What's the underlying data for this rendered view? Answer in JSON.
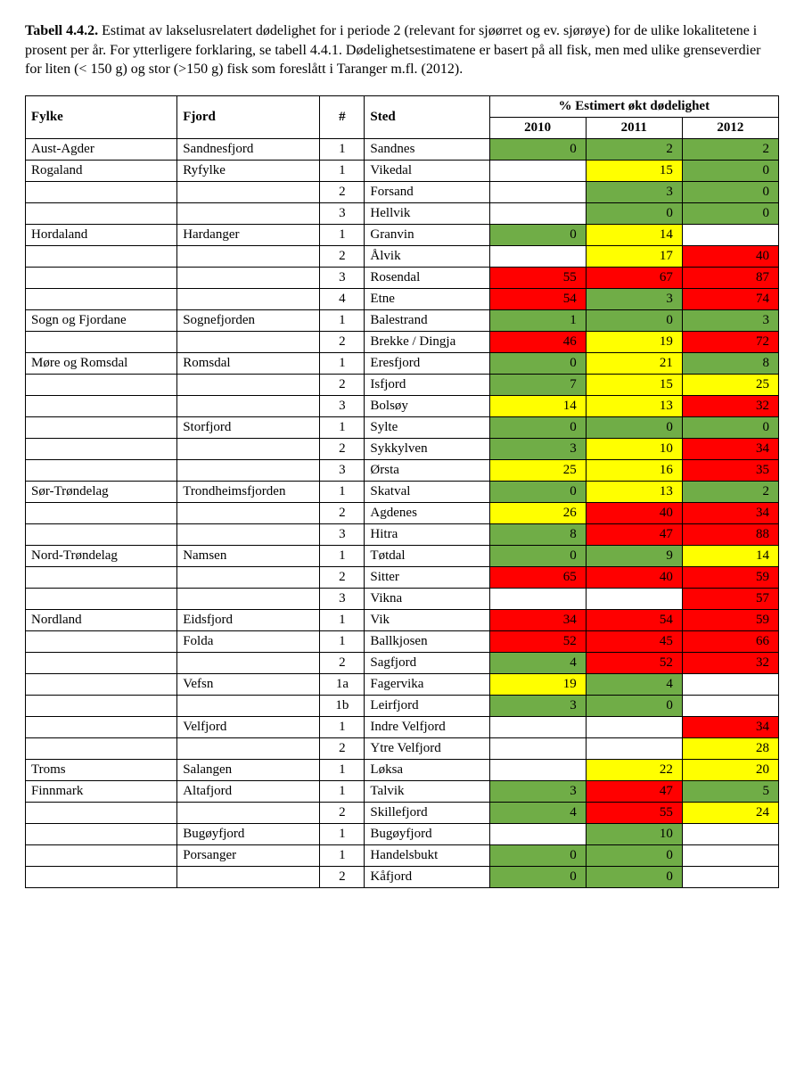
{
  "caption": {
    "lead": "Tabell 4.4.2.",
    "text": " Estimat av lakselusrelatert dødelighet for i periode 2 (relevant for sjøørret og ev. sjørøye) for de ulike lokalitetene i prosent per år. For ytterligere forklaring, se tabell 4.4.1. Dødelighetsestimatene er basert på all fisk, men med ulike grenseverdier for liten (< 150 g) og stor (>150 g) fisk som foreslått i Taranger m.fl. (2012)."
  },
  "columns": {
    "fylke": "Fylke",
    "fjord": "Fjord",
    "num": "#",
    "sted": "Sted",
    "group": "% Estimert økt dødelighet",
    "y2010": "2010",
    "y2011": "2011",
    "y2012": "2012"
  },
  "colors": {
    "green": "#70ad47",
    "yellow": "#ffff00",
    "red": "#ff0000",
    "white": "#ffffff"
  },
  "rows": [
    {
      "fylke": "Aust-Agder",
      "fjord": "Sandnesfjord",
      "num": "1",
      "sted": "Sandnes",
      "v": [
        0,
        2,
        2
      ],
      "c": [
        "green",
        "green",
        "green"
      ]
    },
    {
      "fylke": "Rogaland",
      "fjord": "Ryfylke",
      "num": "1",
      "sted": "Vikedal",
      "v": [
        null,
        15,
        0
      ],
      "c": [
        "white",
        "yellow",
        "green"
      ]
    },
    {
      "fylke": "",
      "fjord": "",
      "num": "2",
      "sted": "Forsand",
      "v": [
        null,
        3,
        0
      ],
      "c": [
        "white",
        "green",
        "green"
      ]
    },
    {
      "fylke": "",
      "fjord": "",
      "num": "3",
      "sted": "Hellvik",
      "v": [
        null,
        0,
        0
      ],
      "c": [
        "white",
        "green",
        "green"
      ]
    },
    {
      "fylke": "Hordaland",
      "fjord": "Hardanger",
      "num": "1",
      "sted": "Granvin",
      "v": [
        0,
        14,
        null
      ],
      "c": [
        "green",
        "yellow",
        "white"
      ]
    },
    {
      "fylke": "",
      "fjord": "",
      "num": "2",
      "sted": "Ålvik",
      "v": [
        null,
        17,
        40
      ],
      "c": [
        "white",
        "yellow",
        "red"
      ]
    },
    {
      "fylke": "",
      "fjord": "",
      "num": "3",
      "sted": "Rosendal",
      "v": [
        55,
        67,
        87
      ],
      "c": [
        "red",
        "red",
        "red"
      ]
    },
    {
      "fylke": "",
      "fjord": "",
      "num": "4",
      "sted": "Etne",
      "v": [
        54,
        3,
        74
      ],
      "c": [
        "red",
        "green",
        "red"
      ]
    },
    {
      "fylke": "Sogn og Fjordane",
      "fjord": "Sognefjorden",
      "num": "1",
      "sted": "Balestrand",
      "v": [
        1,
        0,
        3
      ],
      "c": [
        "green",
        "green",
        "green"
      ]
    },
    {
      "fylke": "",
      "fjord": "",
      "num": "2",
      "sted": "Brekke / Dingja",
      "v": [
        46,
        19,
        72
      ],
      "c": [
        "red",
        "yellow",
        "red"
      ]
    },
    {
      "fylke": "Møre og Romsdal",
      "fjord": "Romsdal",
      "num": "1",
      "sted": "Eresfjord",
      "v": [
        0,
        21,
        8
      ],
      "c": [
        "green",
        "yellow",
        "green"
      ]
    },
    {
      "fylke": "",
      "fjord": "",
      "num": "2",
      "sted": "Isfjord",
      "v": [
        7,
        15,
        25
      ],
      "c": [
        "green",
        "yellow",
        "yellow"
      ]
    },
    {
      "fylke": "",
      "fjord": "",
      "num": "3",
      "sted": "Bolsøy",
      "v": [
        14,
        13,
        32
      ],
      "c": [
        "yellow",
        "yellow",
        "red"
      ]
    },
    {
      "fylke": "",
      "fjord": "Storfjord",
      "num": "1",
      "sted": "Sylte",
      "v": [
        0,
        0,
        0
      ],
      "c": [
        "green",
        "green",
        "green"
      ]
    },
    {
      "fylke": "",
      "fjord": "",
      "num": "2",
      "sted": "Sykkylven",
      "v": [
        3,
        10,
        34
      ],
      "c": [
        "green",
        "yellow",
        "red"
      ]
    },
    {
      "fylke": "",
      "fjord": "",
      "num": "3",
      "sted": "Ørsta",
      "v": [
        25,
        16,
        35
      ],
      "c": [
        "yellow",
        "yellow",
        "red"
      ]
    },
    {
      "fylke": "Sør-Trøndelag",
      "fjord": "Trondheimsfjorden",
      "num": "1",
      "sted": "Skatval",
      "v": [
        0,
        13,
        2
      ],
      "c": [
        "green",
        "yellow",
        "green"
      ]
    },
    {
      "fylke": "",
      "fjord": "",
      "num": "2",
      "sted": "Agdenes",
      "v": [
        26,
        40,
        34
      ],
      "c": [
        "yellow",
        "red",
        "red"
      ]
    },
    {
      "fylke": "",
      "fjord": "",
      "num": "3",
      "sted": "Hitra",
      "v": [
        8,
        47,
        88
      ],
      "c": [
        "green",
        "red",
        "red"
      ]
    },
    {
      "fylke": "Nord-Trøndelag",
      "fjord": "Namsen",
      "num": "1",
      "sted": "Tøtdal",
      "v": [
        0,
        9,
        14
      ],
      "c": [
        "green",
        "green",
        "yellow"
      ]
    },
    {
      "fylke": "",
      "fjord": "",
      "num": "2",
      "sted": "Sitter",
      "v": [
        65,
        40,
        59
      ],
      "c": [
        "red",
        "red",
        "red"
      ]
    },
    {
      "fylke": "",
      "fjord": "",
      "num": "3",
      "sted": "Vikna",
      "v": [
        null,
        null,
        57
      ],
      "c": [
        "white",
        "white",
        "red"
      ]
    },
    {
      "fylke": "Nordland",
      "fjord": "Eidsfjord",
      "num": "1",
      "sted": "Vik",
      "v": [
        34,
        54,
        59
      ],
      "c": [
        "red",
        "red",
        "red"
      ]
    },
    {
      "fylke": "",
      "fjord": "Folda",
      "num": "1",
      "sted": "Ballkjosen",
      "v": [
        52,
        45,
        66
      ],
      "c": [
        "red",
        "red",
        "red"
      ]
    },
    {
      "fylke": "",
      "fjord": "",
      "num": "2",
      "sted": "Sagfjord",
      "v": [
        4,
        52,
        32
      ],
      "c": [
        "green",
        "red",
        "red"
      ]
    },
    {
      "fylke": "",
      "fjord": "Vefsn",
      "num": "1a",
      "sted": "Fagervika",
      "v": [
        19,
        4,
        null
      ],
      "c": [
        "yellow",
        "green",
        "white"
      ]
    },
    {
      "fylke": "",
      "fjord": "",
      "num": "1b",
      "sted": "Leirfjord",
      "v": [
        3,
        0,
        null
      ],
      "c": [
        "green",
        "green",
        "white"
      ]
    },
    {
      "fylke": "",
      "fjord": "Velfjord",
      "num": "1",
      "sted": "Indre Velfjord",
      "v": [
        null,
        null,
        34
      ],
      "c": [
        "white",
        "white",
        "red"
      ]
    },
    {
      "fylke": "",
      "fjord": "",
      "num": "2",
      "sted": "Ytre Velfjord",
      "v": [
        null,
        null,
        28
      ],
      "c": [
        "white",
        "white",
        "yellow"
      ]
    },
    {
      "fylke": "Troms",
      "fjord": "Salangen",
      "num": "1",
      "sted": "Løksa",
      "v": [
        null,
        22,
        20
      ],
      "c": [
        "white",
        "yellow",
        "yellow"
      ]
    },
    {
      "fylke": "Finnmark",
      "fjord": "Altafjord",
      "num": "1",
      "sted": "Talvik",
      "v": [
        3,
        47,
        5
      ],
      "c": [
        "green",
        "red",
        "green"
      ]
    },
    {
      "fylke": "",
      "fjord": "",
      "num": "2",
      "sted": "Skillefjord",
      "v": [
        4,
        55,
        24
      ],
      "c": [
        "green",
        "red",
        "yellow"
      ]
    },
    {
      "fylke": "",
      "fjord": "Bugøyfjord",
      "num": "1",
      "sted": "Bugøyfjord",
      "v": [
        null,
        10,
        null
      ],
      "c": [
        "white",
        "green",
        "white"
      ]
    },
    {
      "fylke": "",
      "fjord": "Porsanger",
      "num": "1",
      "sted": "Handelsbukt",
      "v": [
        0,
        0,
        null
      ],
      "c": [
        "green",
        "green",
        "white"
      ]
    },
    {
      "fylke": "",
      "fjord": "",
      "num": "2",
      "sted": "Kåfjord",
      "v": [
        0,
        0,
        null
      ],
      "c": [
        "green",
        "green",
        "white"
      ]
    }
  ]
}
